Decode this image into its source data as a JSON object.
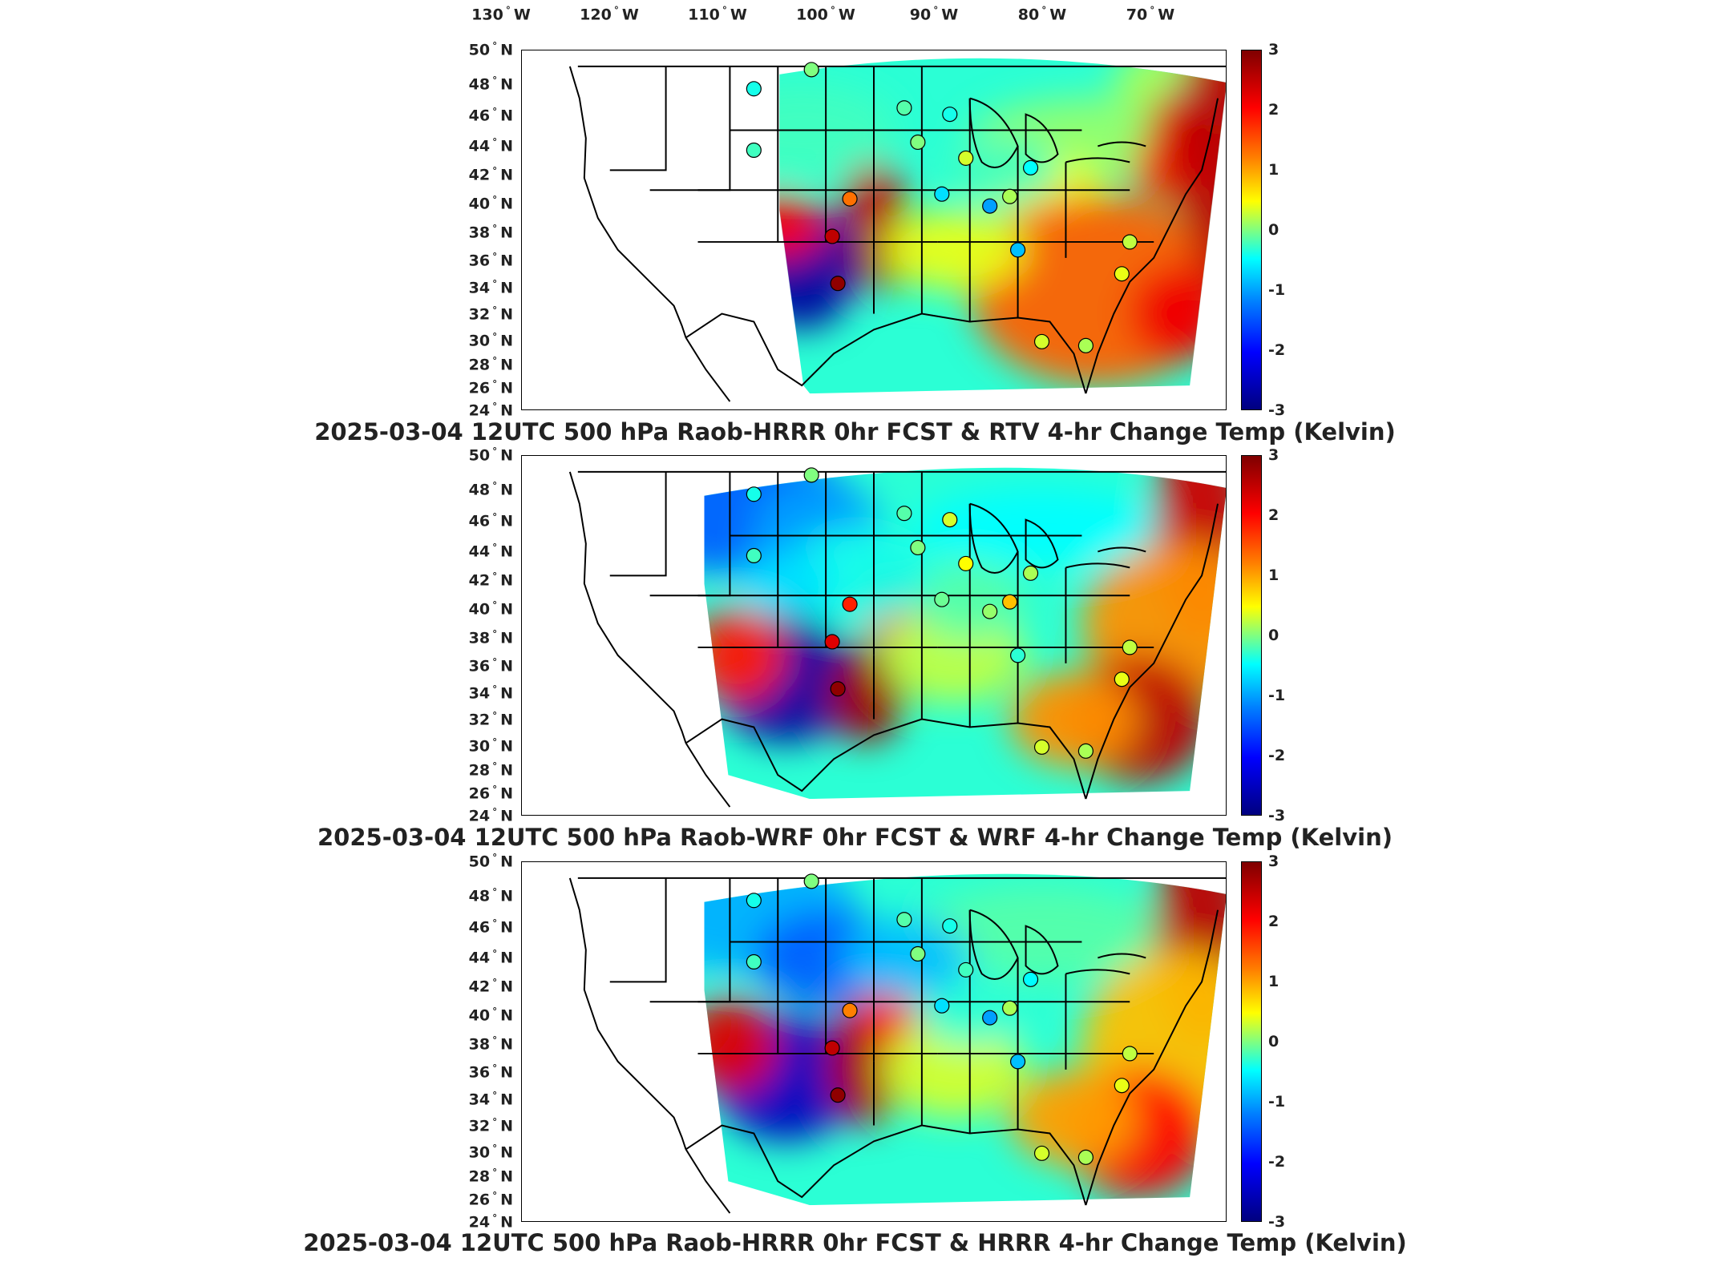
{
  "longitude_labels": [
    {
      "deg": "130",
      "hem": "W"
    },
    {
      "deg": "120",
      "hem": "W"
    },
    {
      "deg": "110",
      "hem": "W"
    },
    {
      "deg": "100",
      "hem": "W"
    },
    {
      "deg": "90",
      "hem": "W"
    },
    {
      "deg": "80",
      "hem": "W"
    },
    {
      "deg": "70",
      "hem": "W"
    }
  ],
  "latitude_labels": [
    {
      "deg": "50",
      "hem": "N"
    },
    {
      "deg": "48",
      "hem": "N"
    },
    {
      "deg": "46",
      "hem": "N"
    },
    {
      "deg": "44",
      "hem": "N"
    },
    {
      "deg": "42",
      "hem": "N"
    },
    {
      "deg": "40",
      "hem": "N"
    },
    {
      "deg": "38",
      "hem": "N"
    },
    {
      "deg": "36",
      "hem": "N"
    },
    {
      "deg": "34",
      "hem": "N"
    },
    {
      "deg": "32",
      "hem": "N"
    },
    {
      "deg": "30",
      "hem": "N"
    },
    {
      "deg": "28",
      "hem": "N"
    },
    {
      "deg": "26",
      "hem": "N"
    },
    {
      "deg": "24",
      "hem": "N"
    }
  ],
  "colorbar": {
    "ticks": [
      "3",
      "2",
      "1",
      "0",
      "-1",
      "-2",
      "-3"
    ],
    "colormap": "jet",
    "range": [
      -3,
      3
    ]
  },
  "panels": [
    {
      "title": "2025-03-04 12UTC 500 hPa Raob-HRRR 0hr FCST & RTV 4-hr Change Temp (Kelvin)",
      "variant": "rtv"
    },
    {
      "title": "2025-03-04 12UTC 500 hPa Raob-WRF 0hr FCST & WRF 4-hr Change Temp (Kelvin)",
      "variant": "wrf"
    },
    {
      "title": "2025-03-04 12UTC 500 hPa Raob-HRRR 0hr FCST & HRRR 4-hr Change Temp (Kelvin)",
      "variant": "hrrr"
    }
  ],
  "colors": {
    "dark_red": "#7f0000",
    "red": "#ff0000",
    "orange": "#ff8000",
    "yellow": "#ffff00",
    "green": "#80ff80",
    "cyan": "#00ffff",
    "blue": "#0080ff",
    "dark_blue": "#00007f"
  }
}
